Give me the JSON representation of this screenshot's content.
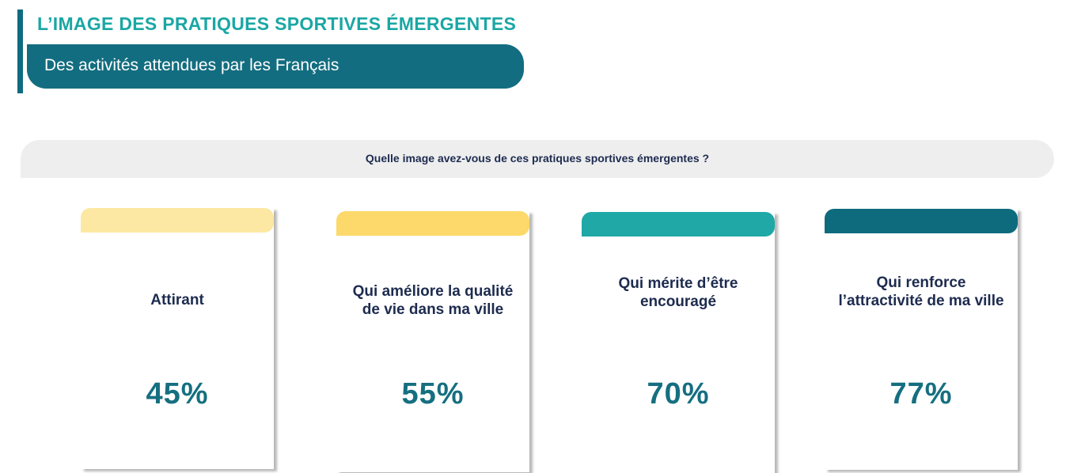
{
  "header": {
    "title": "L’IMAGE DES PRATIQUES SPORTIVES ÉMERGENTES",
    "subtitle": "Des activités attendues par les Français"
  },
  "question": "Quelle image avez-vous de ces pratiques sportives émergentes ?",
  "cards": [
    {
      "label": "Attirant",
      "value": "45%",
      "color": "#fce8a2"
    },
    {
      "label": "Qui améliore la qualité de vie dans ma ville",
      "value": "55%",
      "color": "#fcd96a"
    },
    {
      "label": "Qui mérite d’être encouragé",
      "value": "70%",
      "color": "#1fa8a6"
    },
    {
      "label": "Qui renforce l’attractivité de ma ville",
      "value": "77%",
      "color": "#0e6b7d"
    }
  ],
  "colors": {
    "title": "#1aa7a4",
    "banner": "#136d80",
    "text_dark": "#1d2b4f",
    "value": "#156f80",
    "question_bg": "#eeeeef"
  }
}
